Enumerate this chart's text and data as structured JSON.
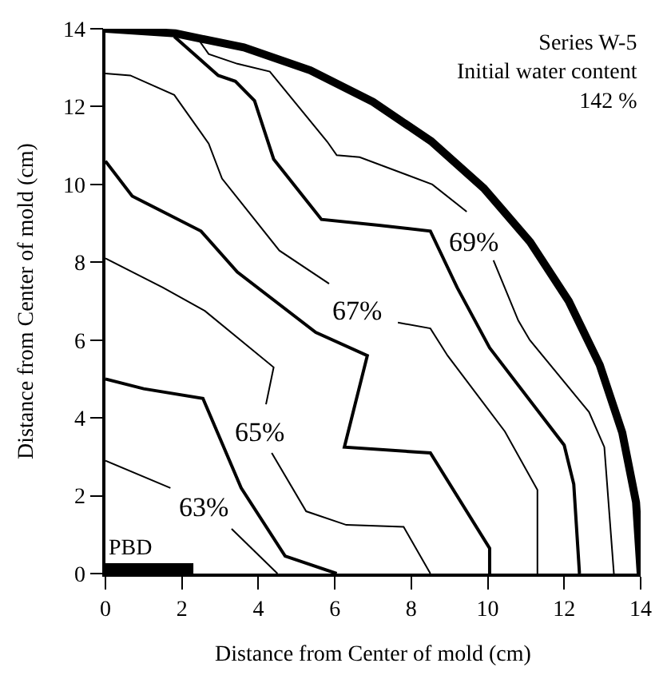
{
  "chart_data": {
    "type": "line",
    "xlabel": "Distance from Center of mold (cm)",
    "ylabel": "Distance from Center of mold (cm)",
    "xlim": [
      0,
      14
    ],
    "ylim": [
      0,
      14
    ],
    "xticks": [
      0,
      2,
      4,
      6,
      8,
      10,
      12,
      14
    ],
    "yticks": [
      0,
      2,
      4,
      6,
      8,
      10,
      12,
      14
    ],
    "legend": false,
    "marker": "none",
    "line_style": "solid",
    "series": [
      {
        "color": "#000000",
        "x": [
          0,
          1.7,
          2.5,
          3.3,
          4.5
        ],
        "values": [
          2.9,
          2.2,
          null,
          1.15,
          0
        ]
      },
      {
        "color": "#000000",
        "x": [
          0,
          1.0,
          2.55,
          3.55,
          4.7,
          6.05
        ],
        "values": [
          5.0,
          4.75,
          4.5,
          2.2,
          0.45,
          0
        ]
      },
      {
        "color": "#000000",
        "x": [
          0,
          1.5,
          2.6,
          4.4,
          4.2,
          4.3,
          4.35,
          5.25,
          6.3,
          7.8,
          8.5
        ],
        "values": [
          8.1,
          7.35,
          6.75,
          5.3,
          4.35,
          null,
          3.1,
          1.6,
          1.25,
          1.2,
          0
        ]
      },
      {
        "color": "#000000",
        "x": [
          0,
          0.7,
          2.5,
          3.45,
          5.5,
          6.85,
          6.25,
          8.5,
          10.05,
          10.05
        ],
        "values": [
          10.6,
          9.7,
          8.8,
          7.75,
          6.2,
          5.6,
          3.25,
          3.1,
          0.65,
          0
        ]
      },
      {
        "color": "#000000",
        "x": [
          0,
          0.65,
          1.8,
          2.7,
          3.05,
          4.55,
          5.85,
          6.7,
          7.65,
          8.5,
          8.95,
          10.45,
          11.3,
          11.3
        ],
        "values": [
          12.85,
          12.8,
          12.3,
          11.05,
          10.15,
          8.3,
          7.45,
          null,
          6.45,
          6.3,
          5.6,
          3.65,
          2.15,
          0
        ]
      },
      {
        "color": "#000000",
        "x": [
          1.8,
          2.95,
          3.4,
          3.9,
          4.4,
          5.65,
          7.15,
          8.5,
          9.2,
          10.05,
          12.0,
          12.25,
          12.4
        ],
        "values": [
          13.8,
          12.8,
          12.65,
          12.15,
          10.65,
          9.1,
          8.95,
          8.8,
          7.35,
          5.8,
          3.3,
          2.3,
          0
        ]
      },
      {
        "color": "#000000",
        "x": [
          2.45,
          2.7,
          3.45,
          4.3,
          5.8,
          6.05,
          6.65,
          8.55,
          9.45,
          9.8,
          10.15,
          10.8,
          11.1,
          12.65,
          13.05,
          13.3
        ],
        "values": [
          13.7,
          13.35,
          13.1,
          12.9,
          11.1,
          10.75,
          10.7,
          10.0,
          9.3,
          null,
          8.05,
          6.5,
          6.0,
          4.15,
          3.25,
          0
        ]
      },
      {
        "color": "#000000",
        "x": [
          0,
          1.83,
          3.62,
          5.36,
          7.0,
          8.52,
          9.9,
          11.11,
          12.12,
          12.93,
          13.52,
          13.88,
          14
        ],
        "values": [
          14,
          13.88,
          13.52,
          12.93,
          12.12,
          11.11,
          9.9,
          8.52,
          7.0,
          5.36,
          3.62,
          1.83,
          0
        ]
      },
      {
        "name": "PBD",
        "color": "#000000",
        "x": [
          0,
          2.3
        ],
        "values": [
          0.1,
          0.1
        ]
      }
    ],
    "annotations": [
      "Series W-5\nInitial water content\n142 %",
      {
        "text": "63%",
        "x": 2.55,
        "y": 1.7
      },
      {
        "text": "65%",
        "x": 4.05,
        "y": 3.65
      },
      {
        "text": "67%",
        "x": 6.6,
        "y": 6.75
      },
      {
        "text": "69%",
        "x": 9.65,
        "y": 8.5
      }
    ]
  }
}
